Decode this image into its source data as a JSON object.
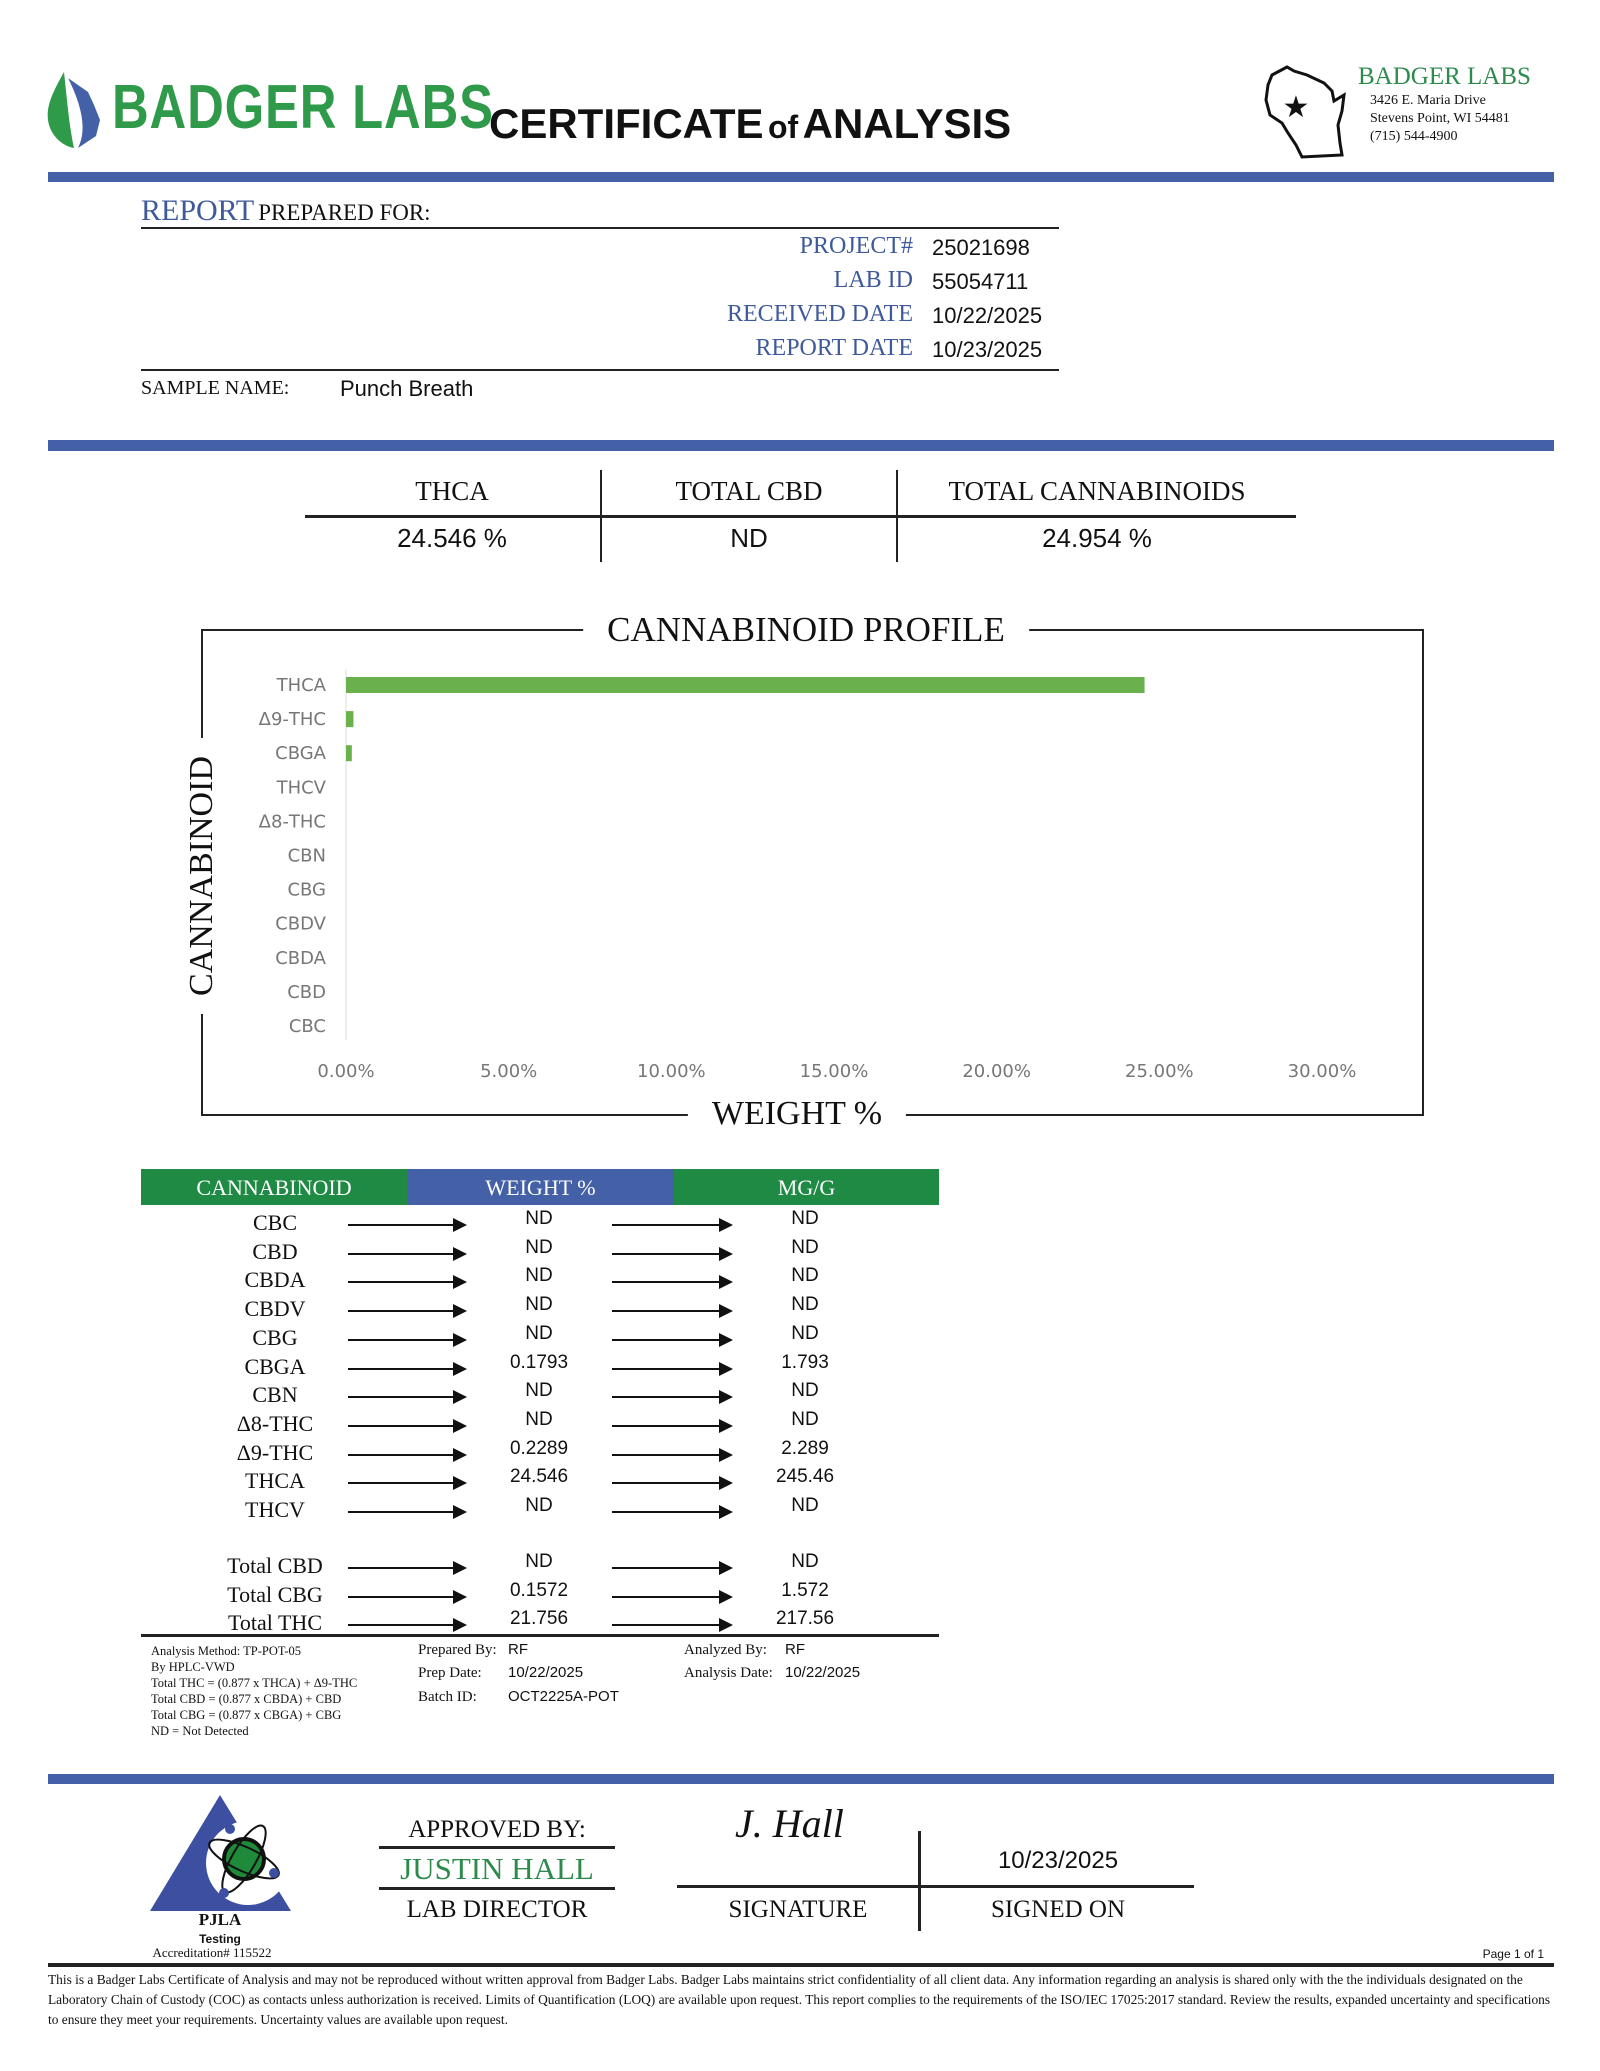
{
  "header": {
    "logo_text": "BADGER LABS",
    "title_main1": "CERTIFICATE",
    "title_of": "of",
    "title_main2": "ANALYSIS",
    "address": {
      "name": "BADGER LABS",
      "street": "3426 E. Maria Drive",
      "city": "Stevens Point, WI 54481",
      "phone": "(715) 544-4900"
    }
  },
  "report": {
    "report_word": "REPORT",
    "prepared_for": "PREPARED FOR:",
    "fields": [
      {
        "label": "PROJECT#",
        "value": "25021698"
      },
      {
        "label": "LAB ID",
        "value": "55054711"
      },
      {
        "label": "RECEIVED DATE",
        "value": "10/22/2025"
      },
      {
        "label": "REPORT DATE",
        "value": "10/23/2025"
      }
    ],
    "sample_name_label": "SAMPLE NAME:",
    "sample_name": "Punch Breath"
  },
  "summary": [
    {
      "label": "THCA",
      "value": "24.546 %"
    },
    {
      "label": "TOTAL CBD",
      "value": "ND"
    },
    {
      "label": "TOTAL CANNABINOIDS",
      "value": "24.954 %"
    }
  ],
  "chart_data": {
    "type": "bar",
    "orientation": "horizontal",
    "title": "CANNABINOID PROFILE",
    "xlabel": "WEIGHT %",
    "ylabel": "CANNABINOID",
    "categories": [
      "THCA",
      "Δ9-THC",
      "CBGA",
      "THCV",
      "Δ8-THC",
      "CBN",
      "CBG",
      "CBDV",
      "CBDA",
      "CBD",
      "CBC"
    ],
    "values": [
      24.546,
      0.2289,
      0.1793,
      0,
      0,
      0,
      0,
      0,
      0,
      0,
      0
    ],
    "xlim": [
      0,
      30
    ],
    "xticks": [
      "0.00%",
      "5.00%",
      "10.00%",
      "15.00%",
      "20.00%",
      "25.00%",
      "30.00%"
    ],
    "bar_color": "#6ab04c",
    "grid": false
  },
  "table": {
    "headers": [
      "CANNABINOID",
      "WEIGHT %",
      "MG/G"
    ],
    "header_colors": [
      "#1f8a44",
      "#4460a6",
      "#1f8a44"
    ],
    "rows": [
      {
        "name": "CBC",
        "weight": "ND",
        "mg": "ND"
      },
      {
        "name": "CBD",
        "weight": "ND",
        "mg": "ND"
      },
      {
        "name": "CBDA",
        "weight": "ND",
        "mg": "ND"
      },
      {
        "name": "CBDV",
        "weight": "ND",
        "mg": "ND"
      },
      {
        "name": "CBG",
        "weight": "ND",
        "mg": "ND"
      },
      {
        "name": "CBGA",
        "weight": "0.1793",
        "mg": "1.793"
      },
      {
        "name": "CBN",
        "weight": "ND",
        "mg": "ND"
      },
      {
        "name": "Δ8-THC",
        "weight": "ND",
        "mg": "ND"
      },
      {
        "name": "Δ9-THC",
        "weight": "0.2289",
        "mg": "2.289"
      },
      {
        "name": "THCA",
        "weight": "24.546",
        "mg": "245.46"
      },
      {
        "name": "THCV",
        "weight": "ND",
        "mg": "ND"
      }
    ],
    "totals": [
      {
        "name": "Total CBD",
        "weight": "ND",
        "mg": "ND"
      },
      {
        "name": "Total CBG",
        "weight": "0.1572",
        "mg": "1.572"
      },
      {
        "name": "Total THC",
        "weight": "21.756",
        "mg": "217.56"
      }
    ]
  },
  "notes": {
    "method_lines": [
      "Analysis Method: TP-POT-05",
      "By HPLC-VWD",
      "Total THC = (0.877 x  THCA) + Δ9-THC",
      "Total CBD = (0.877 x  CBDA) + CBD",
      "Total CBG = (0.877 x  CBGA) + CBG",
      "ND = Not Detected"
    ],
    "prepared_by_label": "Prepared By:",
    "prepared_by": "RF",
    "prep_date_label": "Prep Date:",
    "prep_date": "10/22/2025",
    "batch_id_label": "Batch ID:",
    "batch_id": "OCT2225A-POT",
    "analyzed_by_label": "Analyzed By:",
    "analyzed_by": "RF",
    "analysis_date_label": "Analysis Date:",
    "analysis_date": "10/22/2025"
  },
  "footer": {
    "pjla": "PJLA",
    "testing": "Testing",
    "accreditation": "Accreditation# 115522",
    "approved_by_label": "APPROVED BY:",
    "approver": "JUSTIN HALL",
    "approver_title": "LAB DIRECTOR",
    "signature_label": "SIGNATURE",
    "signature_text": "J. Hall",
    "signed_on_date": "10/23/2025",
    "signed_on_label": "SIGNED ON",
    "page": "Page 1 of 1",
    "disclaimer": "This is a Badger Labs Certificate of Analysis and may not be reproduced without written approval from Badger Labs. Badger Labs maintains strict confidentiality of all client data. Any information regarding an analysis is shared only with the the individuals designated on the Laboratory Chain of Custody (COC) as contacts unless authorization is received. Limits of Quantification (LOQ) are available upon request. This report complies to the requirements of the ISO/IEC 17025:2017 standard. Review the results, expanded uncertainty and specifications to ensure they meet your requirements. Uncertainty values are available upon request."
  }
}
